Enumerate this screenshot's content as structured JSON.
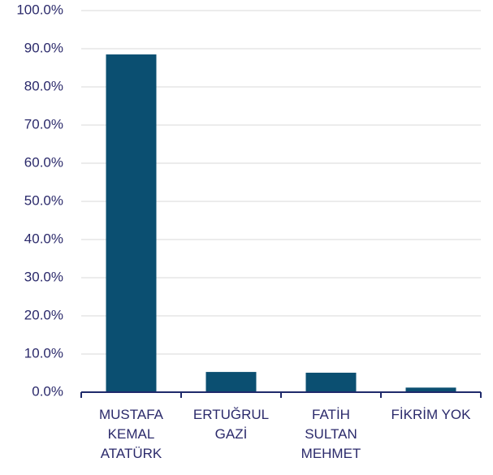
{
  "chart_data": {
    "type": "bar",
    "categories": [
      "MUSTAFA KEMAL ATATÜRK",
      "ERTUĞRUL GAZİ",
      "FATİH SULTAN MEHMET",
      "FİKRİM YOK"
    ],
    "values": [
      88.5,
      5.3,
      5.1,
      1.2
    ],
    "color": "#0b4f71",
    "ylim": [
      0,
      100
    ],
    "yticks": [
      {
        "value": 0,
        "label": "0.0%"
      },
      {
        "value": 10,
        "label": "10.0%"
      },
      {
        "value": 20,
        "label": "20.0%"
      },
      {
        "value": 30,
        "label": "30.0%"
      },
      {
        "value": 40,
        "label": "40.0%"
      },
      {
        "value": 50,
        "label": "50.0%"
      },
      {
        "value": 60,
        "label": "60.0%"
      },
      {
        "value": 70,
        "label": "70.0%"
      },
      {
        "value": 80,
        "label": "80.0%"
      },
      {
        "value": 90,
        "label": "90.0%"
      },
      {
        "value": 100,
        "label": "100.0%"
      }
    ],
    "grid": true
  }
}
